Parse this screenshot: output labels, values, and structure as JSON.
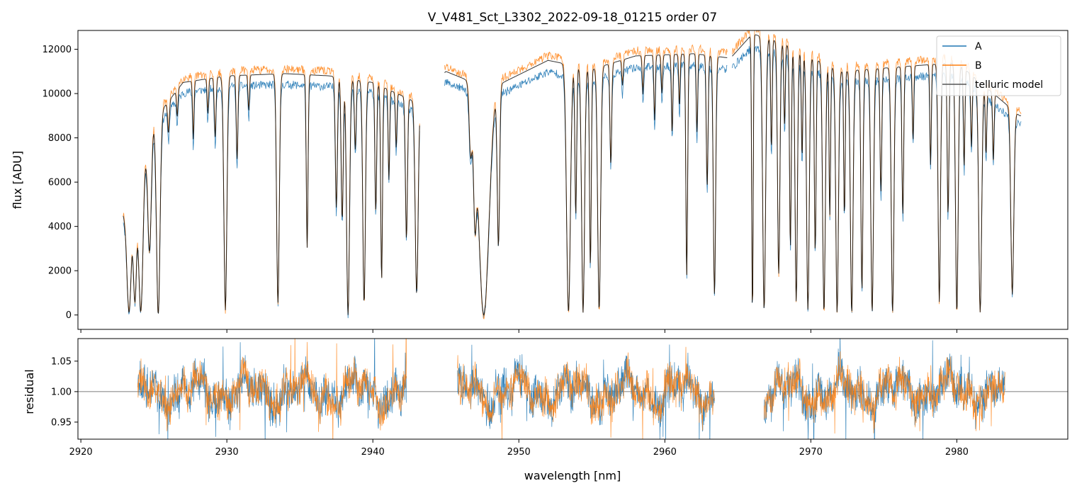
{
  "chart_data": [
    {
      "type": "line",
      "title": "V_V481_Sct_L3302_2022-09-18_01215  order 07",
      "xlabel": "",
      "ylabel": "flux [ADU]",
      "xlim": [
        2919.8,
        2987.6
      ],
      "ylim": [
        -650,
        12850
      ],
      "yticks": [
        0,
        2000,
        4000,
        6000,
        8000,
        10000,
        12000
      ],
      "yticklabels": [
        "0",
        "2000",
        "4000",
        "6000",
        "8000",
        "10000",
        "12000"
      ],
      "legend": {
        "placement": "top-right",
        "entries": [
          "A",
          "B",
          "telluric model"
        ]
      },
      "series": [
        {
          "name": "A",
          "color": "#1f77b4",
          "continuum_scale": 0.955
        },
        {
          "name": "B",
          "color": "#ff7f0e",
          "continuum_scale": 1.02
        },
        {
          "name": "telluric model",
          "color": "#000000",
          "continuum_scale": 1.0
        }
      ],
      "continuum_knots": {
        "x": [
          2923.0,
          2925.0,
          2927.0,
          2930.0,
          2934.0,
          2937.0,
          2940.0,
          2943.0,
          2945.0,
          2948.0,
          2952.0,
          2955.0,
          2958.0,
          2962.0,
          2964.5,
          2966.0,
          2968.0,
          2972.0,
          2976.0,
          2980.0,
          2984.3
        ],
        "y": [
          4600,
          8800,
          10500,
          10800,
          10900,
          10800,
          10500,
          9600,
          11000,
          10200,
          11500,
          11100,
          11700,
          11800,
          11600,
          12700,
          12300,
          11000,
          11200,
          11400,
          9000
        ]
      },
      "gaps": [
        [
          2943.2,
          2944.9
        ],
        [
          2964.3,
          2964.6
        ]
      ],
      "absorption_lines": [
        [
          2923.3,
          0.98,
          0.15
        ],
        [
          2923.7,
          0.9,
          0.12
        ],
        [
          2924.1,
          0.98,
          0.15
        ],
        [
          2924.7,
          0.65,
          0.12
        ],
        [
          2925.3,
          1.0,
          0.12
        ],
        [
          2926.0,
          0.15,
          0.06
        ],
        [
          2926.6,
          0.12,
          0.05
        ],
        [
          2927.7,
          0.25,
          0.05
        ],
        [
          2928.7,
          0.15,
          0.05
        ],
        [
          2929.2,
          0.25,
          0.06
        ],
        [
          2929.9,
          0.98,
          0.1
        ],
        [
          2930.7,
          0.35,
          0.06
        ],
        [
          2931.5,
          0.15,
          0.05
        ],
        [
          2933.5,
          0.95,
          0.09
        ],
        [
          2935.5,
          0.72,
          0.06
        ],
        [
          2937.5,
          0.55,
          0.07
        ],
        [
          2937.9,
          0.6,
          0.07
        ],
        [
          2938.3,
          1.0,
          0.1
        ],
        [
          2938.8,
          0.3,
          0.06
        ],
        [
          2939.4,
          0.95,
          0.09
        ],
        [
          2940.2,
          0.55,
          0.06
        ],
        [
          2940.6,
          0.85,
          0.06
        ],
        [
          2941.1,
          0.4,
          0.05
        ],
        [
          2941.6,
          0.25,
          0.05
        ],
        [
          2942.3,
          0.65,
          0.07
        ],
        [
          2943.0,
          0.9,
          0.1
        ],
        [
          2946.7,
          0.3,
          0.1
        ],
        [
          2947.0,
          0.55,
          0.1
        ],
        [
          2947.6,
          1.0,
          0.35
        ],
        [
          2948.6,
          0.7,
          0.08
        ],
        [
          2953.4,
          0.99,
          0.13
        ],
        [
          2953.9,
          0.6,
          0.06
        ],
        [
          2954.4,
          0.99,
          0.1
        ],
        [
          2954.9,
          0.8,
          0.06
        ],
        [
          2955.5,
          0.98,
          0.1
        ],
        [
          2956.3,
          0.4,
          0.06
        ],
        [
          2957.1,
          0.1,
          0.05
        ],
        [
          2958.5,
          0.15,
          0.05
        ],
        [
          2959.3,
          0.25,
          0.05
        ],
        [
          2959.8,
          0.15,
          0.05
        ],
        [
          2960.5,
          0.3,
          0.05
        ],
        [
          2961.0,
          0.2,
          0.05
        ],
        [
          2961.5,
          0.85,
          0.06
        ],
        [
          2962.2,
          0.3,
          0.05
        ],
        [
          2962.9,
          0.5,
          0.06
        ],
        [
          2963.4,
          0.92,
          0.08
        ],
        [
          2966.0,
          1.0,
          0.05
        ],
        [
          2966.8,
          0.98,
          0.1
        ],
        [
          2967.3,
          0.4,
          0.05
        ],
        [
          2967.8,
          0.85,
          0.08
        ],
        [
          2968.2,
          0.3,
          0.05
        ],
        [
          2968.6,
          0.75,
          0.06
        ],
        [
          2969.0,
          0.95,
          0.08
        ],
        [
          2969.4,
          0.4,
          0.05
        ],
        [
          2969.8,
          0.98,
          0.09
        ],
        [
          2970.3,
          0.75,
          0.06
        ],
        [
          2970.9,
          0.99,
          0.09
        ],
        [
          2971.3,
          0.6,
          0.05
        ],
        [
          2971.8,
          0.99,
          0.09
        ],
        [
          2972.3,
          0.6,
          0.05
        ],
        [
          2972.8,
          0.99,
          0.09
        ],
        [
          2973.5,
          0.9,
          0.07
        ],
        [
          2974.2,
          0.99,
          0.09
        ],
        [
          2974.8,
          0.5,
          0.06
        ],
        [
          2975.6,
          0.99,
          0.09
        ],
        [
          2976.3,
          0.6,
          0.06
        ],
        [
          2977.0,
          0.3,
          0.05
        ],
        [
          2978.2,
          0.4,
          0.05
        ],
        [
          2978.8,
          0.95,
          0.08
        ],
        [
          2979.4,
          0.6,
          0.06
        ],
        [
          2980.0,
          0.99,
          0.09
        ],
        [
          2980.5,
          0.4,
          0.05
        ],
        [
          2981.0,
          0.3,
          0.05
        ],
        [
          2981.6,
          0.99,
          0.1
        ],
        [
          2982.0,
          0.3,
          0.05
        ],
        [
          2982.5,
          0.3,
          0.05
        ],
        [
          2983.8,
          0.9,
          0.1
        ]
      ]
    },
    {
      "type": "line",
      "title": "",
      "xlabel": "wavelength [nm]",
      "ylabel": "residual",
      "xlim": [
        2919.8,
        2987.6
      ],
      "ylim": [
        0.922,
        1.087
      ],
      "xticks": [
        2920,
        2930,
        2940,
        2950,
        2960,
        2970,
        2980
      ],
      "xticklabels": [
        "2920",
        "2930",
        "2940",
        "2950",
        "2960",
        "2970",
        "2980"
      ],
      "yticks": [
        0.95,
        1.0,
        1.05
      ],
      "yticklabels": [
        "0.95",
        "1.00",
        "1.05"
      ],
      "reference_line": 1.0,
      "segments": [
        [
          2923.9,
          2942.3
        ],
        [
          2945.8,
          2963.4
        ],
        [
          2966.8,
          2983.3
        ]
      ],
      "series": [
        {
          "name": "A",
          "color": "#1f77b4"
        },
        {
          "name": "B",
          "color": "#ff7f0e"
        }
      ]
    }
  ]
}
